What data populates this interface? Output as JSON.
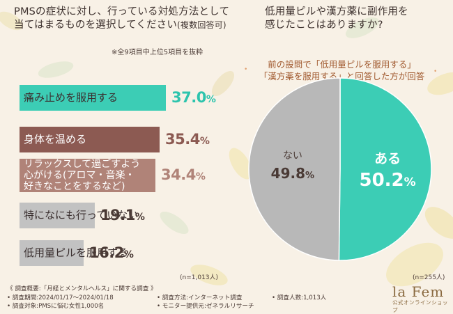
{
  "left": {
    "title_line1": "PMSの症状に対し、行っている対処方法として",
    "title_line2_main": "当てはまるものを選択してください",
    "title_line2_note": "(複数回答可)",
    "note": "※全9項目中上位5項目を抜粋",
    "sample": "(n=1,013人)"
  },
  "right": {
    "title_line1": "低用量ピルや漢方薬に副作用を",
    "title_line2": "感じたことはありますか?",
    "subtitle_line1": "前の設問で「低用量ピルを服用する」",
    "subtitle_line2": "「漢方薬を服用する」と回答した方が回答",
    "sample": "(n=255人)"
  },
  "chart_data": [
    {
      "type": "bar",
      "orientation": "horizontal",
      "title": "PMSの症状に対し、行っている対処方法として当てはまるものを選択してください(複数回答可)",
      "categories": [
        "痛み止めを服用する",
        "身体を温める",
        "リラックスして過ごすよう心がける(アロマ・音楽・好きなことをするなど)",
        "特になにも行っていない",
        "低用量ピルを服用する"
      ],
      "label_lines": [
        [
          "痛み止めを服用する"
        ],
        [
          "身体を温める"
        ],
        [
          "リラックスして過ごすよう",
          "心がける(アロマ・音楽・",
          "好きなことをするなど)"
        ],
        [
          "特になにも行っていない"
        ],
        [
          "低用量ピルを服用する"
        ]
      ],
      "values": [
        37.0,
        35.4,
        34.4,
        19.1,
        16.2
      ],
      "value_labels": [
        "37.0",
        "35.4",
        "34.4",
        "19.1",
        "16.2"
      ],
      "unit": "%",
      "colors": [
        "#3ccdb5",
        "#8c5a52",
        "#b08378",
        "#c2c2c2",
        "#c2c2c2"
      ],
      "label_colors": [
        "#3b3030",
        "#ffffff",
        "#ffffff",
        "#3b3030",
        "#3b3030"
      ],
      "value_colors": [
        "#2dc4ad",
        "#8c5a52",
        "#b08378",
        "#4a3a35",
        "#4a3a35"
      ]
    },
    {
      "type": "pie",
      "title": "低用量ピルや漢方薬に副作用を感じたことはありますか?",
      "labels": [
        "ある",
        "ない"
      ],
      "values": [
        50.2,
        49.8
      ],
      "value_labels": [
        "50.2",
        "49.8"
      ],
      "unit": "%",
      "colors": [
        "#3ccdb5",
        "#b8b8b8"
      ]
    }
  ],
  "footer": {
    "overview": "《 調査概要:「月経とメンタルヘルス」に関する調査 》",
    "period": "• 調査期間:2024/01/17〜2024/01/18",
    "target": "• 調査対象:PMSに悩む女性1,000名",
    "method": "• 調査方法:インターネット調査",
    "provider": "• モニター提供元:ゼネラルリサーチ",
    "count": "• 調査人数:1,013人"
  },
  "brand": {
    "name": "la Fem",
    "tagline": "公式オンラインショップ"
  },
  "colors": {
    "accent_teal": "#3ccdb5",
    "brown": "#8c5a52",
    "light_brown": "#b08378",
    "gray": "#c2c2c2",
    "subtitle": "#a0582d"
  }
}
